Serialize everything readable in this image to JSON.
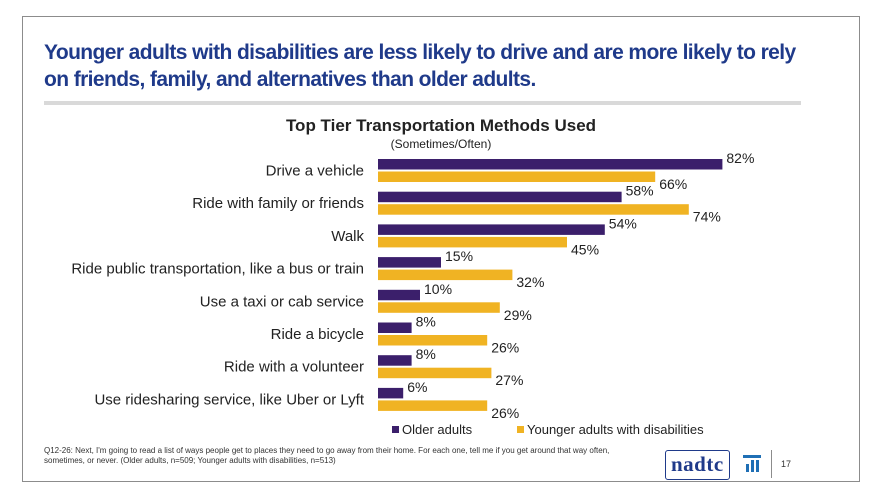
{
  "slide": {
    "headline": "Younger adults with disabilities are less likely to drive and are more likely to rely on friends, family, and alternatives than older adults.",
    "footnote": "Q12-26: Next, I'm going to read a list of ways people get to places they need to go away from their home. For each one, tell me if you get around that way often, sometimes, or never. (Older adults, n=509; Younger adults with disabilities, n=513)",
    "logo_text": "nadtc",
    "page_number": "17",
    "logo_icon": "bar-steps-icon"
  },
  "chart_data": {
    "type": "bar",
    "orientation": "horizontal",
    "title": "Top Tier Transportation Methods Used",
    "subtitle": "(Sometimes/Often)",
    "categories": [
      "Drive a vehicle",
      "Ride with family or friends",
      "Walk",
      "Ride public transportation, like a bus or train",
      "Use a taxi or cab service",
      "Ride a bicycle",
      "Ride with a volunteer",
      "Use ridesharing service, like Uber or Lyft"
    ],
    "series": [
      {
        "name": "Older adults",
        "color": "#3b1f6b",
        "values": [
          82,
          58,
          54,
          15,
          10,
          8,
          8,
          6
        ],
        "labels": [
          "82%",
          "58%",
          "54%",
          "15%",
          "10%",
          "8%",
          "8%",
          "6%"
        ]
      },
      {
        "name": "Younger adults with disabilities",
        "color": "#f0b323",
        "values": [
          66,
          74,
          45,
          32,
          29,
          26,
          27,
          26
        ],
        "labels": [
          "66%",
          "74%",
          "45%",
          "32%",
          "29%",
          "26%",
          "27%",
          "26%"
        ]
      }
    ],
    "xlim": [
      0,
      100
    ],
    "unit": "%",
    "grid": false,
    "legend_position": "bottom-right"
  }
}
